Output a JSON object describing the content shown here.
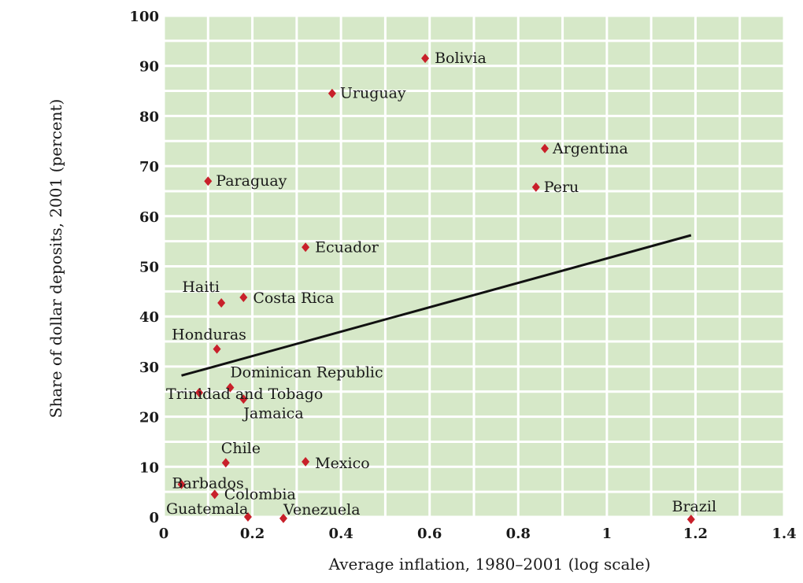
{
  "chart_data": {
    "type": "scatter",
    "title": "",
    "xlabel": "Average inflation, 1980–2001 (log scale)",
    "ylabel": "Share of dollar deposits, 2001 (percent)",
    "xlim": [
      0,
      1.4
    ],
    "ylim": [
      0,
      100
    ],
    "x_ticks": [
      0,
      0.2,
      0.4,
      0.6,
      0.8,
      1,
      1.2,
      1.4
    ],
    "x_tick_labels": [
      "0",
      "0.2",
      "0.4",
      "0.6",
      "0.8",
      "1",
      "1.2",
      "1.4"
    ],
    "y_ticks": [
      0,
      10,
      20,
      30,
      40,
      50,
      60,
      70,
      80,
      90,
      100
    ],
    "y_tick_labels": [
      "0",
      "10",
      "20",
      "30",
      "40",
      "50",
      "60",
      "70",
      "80",
      "90",
      "100"
    ],
    "grid": true,
    "plot_background": "#d6e8c8",
    "grid_color": "#ffffff",
    "marker_color": "#c8202a",
    "trendline_color": "#111111",
    "points": [
      {
        "label": "Bolivia",
        "x": 0.59,
        "y": 91.5
      },
      {
        "label": "Uruguay",
        "x": 0.38,
        "y": 84.5
      },
      {
        "label": "Argentina",
        "x": 0.86,
        "y": 73.5
      },
      {
        "label": "Paraguay",
        "x": 0.1,
        "y": 67.0
      },
      {
        "label": "Peru",
        "x": 0.84,
        "y": 65.8
      },
      {
        "label": "Ecuador",
        "x": 0.32,
        "y": 53.8
      },
      {
        "label": "Haiti",
        "x": 0.13,
        "y": 42.7
      },
      {
        "label": "Costa Rica",
        "x": 0.18,
        "y": 43.8
      },
      {
        "label": "Honduras",
        "x": 0.12,
        "y": 33.5
      },
      {
        "label": "Dominican Republic",
        "x": 0.15,
        "y": 25.8
      },
      {
        "label": "Trinidad and Tobago",
        "x": 0.08,
        "y": 24.8
      },
      {
        "label": "Jamaica",
        "x": 0.18,
        "y": 23.5
      },
      {
        "label": "Chile",
        "x": 0.14,
        "y": 10.8
      },
      {
        "label": "Mexico",
        "x": 0.32,
        "y": 11.0
      },
      {
        "label": "Barbados",
        "x": 0.04,
        "y": 6.5
      },
      {
        "label": "Colombia",
        "x": 0.115,
        "y": 4.5
      },
      {
        "label": "Guatemala",
        "x": 0.19,
        "y": 0.0
      },
      {
        "label": "Venezuela",
        "x": 0.27,
        "y": -0.3
      },
      {
        "label": "Brazil",
        "x": 1.19,
        "y": -0.5
      }
    ],
    "trendline": {
      "x": [
        0.04,
        1.19
      ],
      "y": [
        28.2,
        56.2
      ]
    }
  }
}
